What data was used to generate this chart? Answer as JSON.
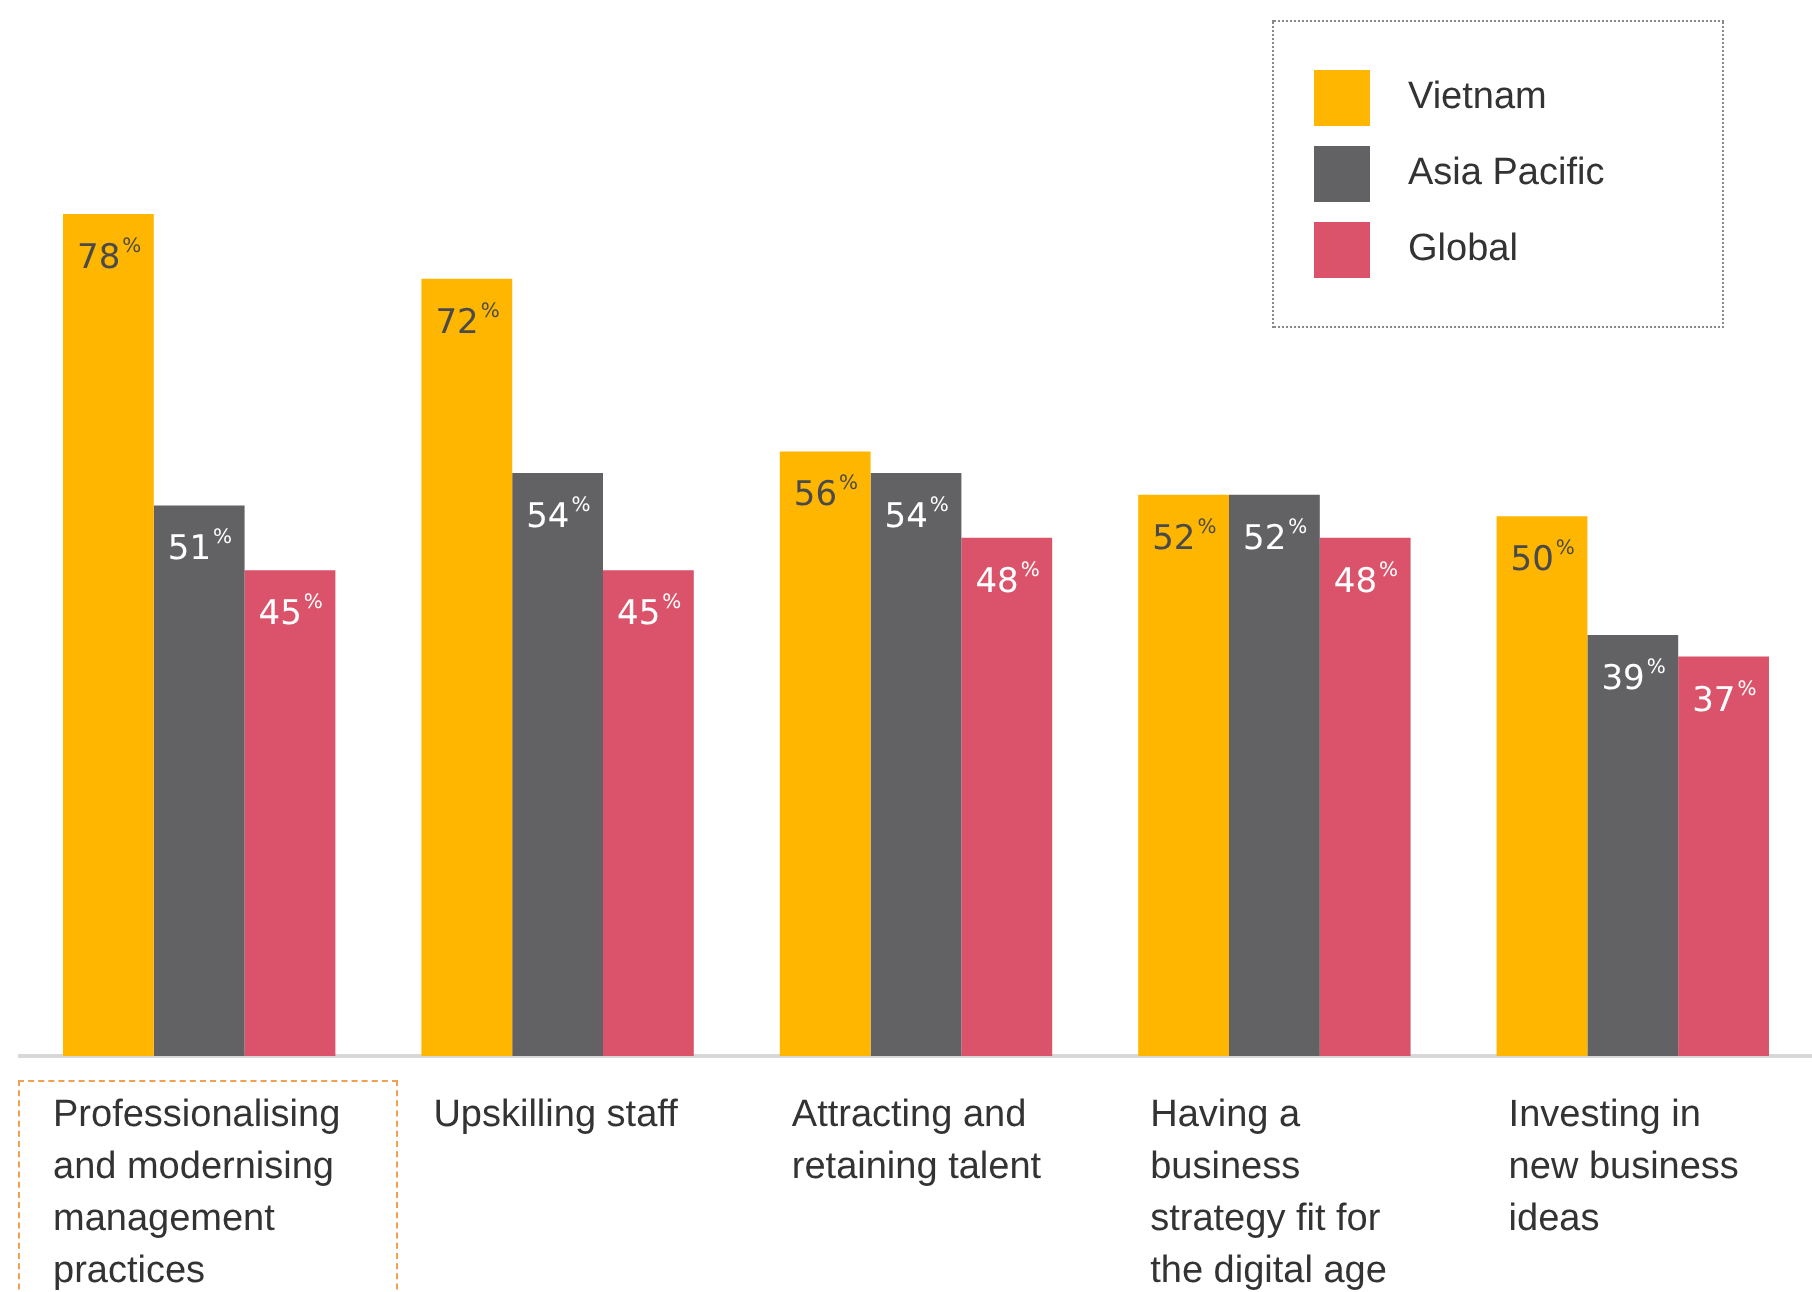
{
  "chart_data": {
    "type": "bar",
    "categories": [
      "Professionalising and modernising management practices",
      "Upskilling staff",
      "Attracting and retaining talent",
      "Having a business strategy fit for the digital age",
      "Investing in new business ideas"
    ],
    "series": [
      {
        "name": "Vietnam",
        "color": "#ffb600",
        "values": [
          78,
          72,
          56,
          52,
          50
        ],
        "value_labels": [
          "78%",
          "72%",
          "56%",
          "52%",
          "50%"
        ]
      },
      {
        "name": "Asia Pacific",
        "color": "#626164",
        "values": [
          51,
          54,
          54,
          52,
          39
        ],
        "value_labels": [
          "51%",
          "54%",
          "54%",
          "52%",
          "39%"
        ]
      },
      {
        "name": "Global",
        "color": "#db536a",
        "values": [
          45,
          45,
          48,
          48,
          37
        ],
        "value_labels": [
          "45%",
          "45%",
          "48%",
          "48%",
          "37%"
        ]
      }
    ],
    "tick_labels": "x",
    "grid": false,
    "legend": "top right"
  }
}
